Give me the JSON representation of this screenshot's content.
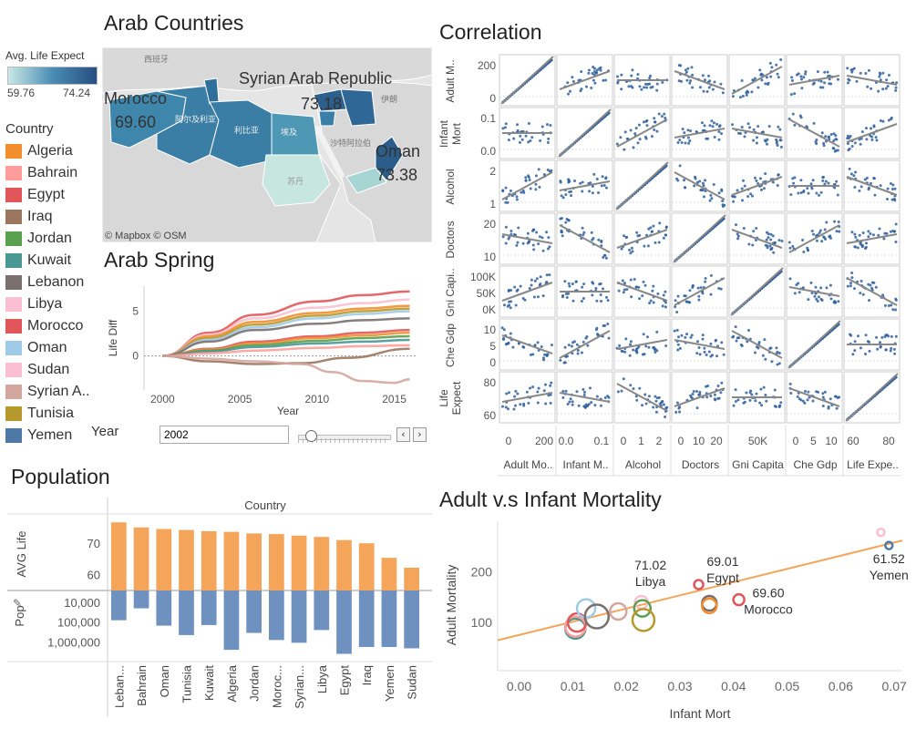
{
  "map_panel": {
    "title": "Arab Countries",
    "legend_title": "Avg. Life Expect",
    "legend_min": "59.76",
    "legend_max": "74.24",
    "attribution": "© Mapbox © OSM",
    "basemap_labels": [
      "西班牙",
      "伊朗",
      "沙特阿拉伯",
      "阿尔及利亚",
      "利比亚",
      "埃及",
      "苏丹"
    ],
    "callouts": [
      {
        "name": "Morocco",
        "value": "69.60"
      },
      {
        "name": "Syrian Arab Republic",
        "value": "73.18"
      },
      {
        "name": "Oman",
        "value": "73.38"
      }
    ]
  },
  "country_legend": {
    "title": "Country",
    "items": [
      {
        "label": "Algeria",
        "color": "#f28e2b"
      },
      {
        "label": "Bahrain",
        "color": "#ff9d9a"
      },
      {
        "label": "Egypt",
        "color": "#e15759"
      },
      {
        "label": "Iraq",
        "color": "#9c755f"
      },
      {
        "label": "Jordan",
        "color": "#59a14f"
      },
      {
        "label": "Kuwait",
        "color": "#499894"
      },
      {
        "label": "Lebanon",
        "color": "#79706e"
      },
      {
        "label": "Libya",
        "color": "#fabfd2"
      },
      {
        "label": "Morocco",
        "color": "#e15759"
      },
      {
        "label": "Oman",
        "color": "#a0cbe8"
      },
      {
        "label": "Sudan",
        "color": "#fabfd2"
      },
      {
        "label": "Syrian A..",
        "color": "#d4a6a0"
      },
      {
        "label": "Tunisia",
        "color": "#b6992d"
      },
      {
        "label": "Yemen",
        "color": "#4e79a7"
      }
    ]
  },
  "year_filter": {
    "label": "Year",
    "value": "2002",
    "prev_icon": "‹",
    "next_icon": "›",
    "slider_fraction": 0.14
  },
  "arab_spring": {
    "title": "Arab Spring",
    "chart_data": {
      "type": "line",
      "xlabel": "Year",
      "ylabel": "Life Diff",
      "x_ticks": [
        "2000",
        "2005",
        "2010",
        "2015"
      ],
      "y_ticks": [
        "0",
        "5"
      ],
      "xlim": [
        1998.8,
        2016.5
      ],
      "ylim": [
        -3.8,
        7.8
      ],
      "series": [
        {
          "color": "#e15759",
          "values": [
            [
              2000,
              0
            ],
            [
              2003,
              2.6
            ],
            [
              2006,
              4.6
            ],
            [
              2010,
              6.1
            ],
            [
              2013,
              6.8
            ],
            [
              2016,
              7.2
            ]
          ]
        },
        {
          "color": "#fabfd2",
          "values": [
            [
              2000,
              0
            ],
            [
              2003,
              2.4
            ],
            [
              2006,
              4.2
            ],
            [
              2010,
              5.4
            ],
            [
              2013,
              5.9
            ],
            [
              2016,
              6.3
            ]
          ]
        },
        {
          "color": "#f28e2b",
          "values": [
            [
              2000,
              0
            ],
            [
              2003,
              2.2
            ],
            [
              2006,
              3.8
            ],
            [
              2010,
              4.8
            ],
            [
              2013,
              5.3
            ],
            [
              2016,
              5.6
            ]
          ]
        },
        {
          "color": "#b6992d",
          "values": [
            [
              2000,
              0
            ],
            [
              2003,
              2.0
            ],
            [
              2006,
              3.5
            ],
            [
              2010,
              4.5
            ],
            [
              2013,
              5.0
            ],
            [
              2016,
              5.3
            ]
          ]
        },
        {
          "color": "#a0cbe8",
          "values": [
            [
              2000,
              0
            ],
            [
              2003,
              1.8
            ],
            [
              2006,
              3.2
            ],
            [
              2010,
              4.2
            ],
            [
              2013,
              4.7
            ],
            [
              2016,
              5.0
            ]
          ]
        },
        {
          "color": "#79706e",
          "values": [
            [
              2000,
              0
            ],
            [
              2003,
              1.6
            ],
            [
              2006,
              2.9
            ],
            [
              2010,
              3.6
            ],
            [
              2013,
              4.0
            ],
            [
              2016,
              4.2
            ]
          ]
        },
        {
          "color": "#e15759",
          "values": [
            [
              2000,
              0
            ],
            [
              2003,
              0.8
            ],
            [
              2006,
              1.6
            ],
            [
              2010,
              2.2
            ],
            [
              2013,
              2.6
            ],
            [
              2016,
              2.9
            ]
          ]
        },
        {
          "color": "#f28e2b",
          "values": [
            [
              2000,
              0
            ],
            [
              2003,
              0.7
            ],
            [
              2006,
              1.4
            ],
            [
              2010,
              2.0
            ],
            [
              2013,
              2.3
            ],
            [
              2016,
              2.6
            ]
          ]
        },
        {
          "color": "#59a14f",
          "values": [
            [
              2000,
              0
            ],
            [
              2003,
              0.6
            ],
            [
              2006,
              1.2
            ],
            [
              2010,
              1.7
            ],
            [
              2013,
              2.0
            ],
            [
              2016,
              2.2
            ]
          ]
        },
        {
          "color": "#499894",
          "values": [
            [
              2000,
              0
            ],
            [
              2003,
              0.5
            ],
            [
              2006,
              1.0
            ],
            [
              2010,
              1.4
            ],
            [
              2013,
              1.6
            ],
            [
              2016,
              1.8
            ]
          ]
        },
        {
          "color": "#ff9d9a",
          "values": [
            [
              2000,
              0
            ],
            [
              2003,
              0.3
            ],
            [
              2006,
              0.6
            ],
            [
              2010,
              0.9
            ],
            [
              2013,
              1.1
            ],
            [
              2016,
              1.2
            ]
          ]
        },
        {
          "color": "#9c755f",
          "values": [
            [
              2000,
              0
            ],
            [
              2003,
              -0.6
            ],
            [
              2006,
              -0.9
            ],
            [
              2009,
              -0.8
            ],
            [
              2012,
              -0.2
            ],
            [
              2016,
              0.8
            ]
          ]
        },
        {
          "color": "#d4a6a0",
          "values": [
            [
              2000,
              0
            ],
            [
              2003,
              -0.3
            ],
            [
              2006,
              -0.6
            ],
            [
              2009,
              -0.9
            ],
            [
              2011,
              -1.8
            ],
            [
              2013,
              -2.8
            ],
            [
              2015,
              -3.0
            ],
            [
              2016,
              -2.6
            ]
          ]
        }
      ]
    }
  },
  "population": {
    "title": "Population",
    "column_header": "Country",
    "top_axis_label": "AVG Life",
    "bottom_axis_label": "Pop",
    "pin_icon": "push-pin-icon",
    "chart_data": {
      "type": "bar",
      "categories": [
        "Leban...",
        "Bahrain",
        "Oman",
        "Tunisia",
        "Kuwait",
        "Algeria",
        "Jordan",
        "Moroc...",
        "Syrian...",
        "Libya",
        "Egypt",
        "Iraq",
        "Yemen",
        "Sudan"
      ],
      "avg_life": [
        76.5,
        74.9,
        74.4,
        74.1,
        73.7,
        73.5,
        73.0,
        72.8,
        72.3,
        71.9,
        70.9,
        69.9,
        65.3,
        62.2
      ],
      "population": [
        80000,
        20000,
        150000,
        450000,
        140000,
        2500000,
        350000,
        800000,
        1100000,
        250000,
        4000000,
        1800000,
        1800000,
        2100000
      ],
      "avg_life_ticks": [
        "60",
        "70"
      ],
      "pop_ticks": [
        "10,000",
        "100,000",
        "1,000,000"
      ],
      "avg_life_color": "#f4a55a",
      "pop_color": "#6f91bf"
    }
  },
  "correlation": {
    "title": "Correlation",
    "variables": [
      "Adult Mo..",
      "Infant M..",
      "Alcohol",
      "Doctors",
      "Gni Capita",
      "Che Gdp",
      "Life Expe.."
    ],
    "row_labels": [
      [
        "Adult M.."
      ],
      [
        "Infant",
        "Mort"
      ],
      [
        "Alcohol"
      ],
      [
        "Doctors"
      ],
      [
        "Gni Capi.."
      ],
      [
        "Che Gdp"
      ],
      [
        "Life",
        "Expect"
      ]
    ],
    "row_ticks": [
      [
        "200",
        "0"
      ],
      [
        "0.1",
        "0.0"
      ],
      [
        "2",
        "1"
      ],
      [
        "20",
        "10"
      ],
      [
        "100K",
        "50K",
        "0K"
      ],
      [
        "10",
        "5",
        "0"
      ],
      [
        "80",
        "60"
      ]
    ],
    "col_ticks": [
      [
        "0",
        "200"
      ],
      [
        "0.0",
        "0.1"
      ],
      [
        "0",
        "1",
        "2"
      ],
      [
        "0",
        "10",
        "20"
      ],
      [
        "50K"
      ],
      [
        "0",
        "5",
        "10"
      ],
      [
        "60",
        "80"
      ]
    ],
    "point_color": "#2f5f9e",
    "trend_color": "#888888"
  },
  "adult_infant": {
    "title": "Adult v.s Infant Mortality",
    "chart_data": {
      "type": "scatter",
      "xlabel": "Infant Mort",
      "ylabel": "Adult Mortality",
      "x_ticks": [
        "0.00",
        "0.01",
        "0.02",
        "0.03",
        "0.04",
        "0.05",
        "0.06",
        "0.07"
      ],
      "y_ticks": [
        "100",
        "200"
      ],
      "xlim": [
        -0.004,
        0.0715
      ],
      "ylim": [
        5,
        300
      ],
      "trend": [
        [
          -0.004,
          65
        ],
        [
          0.0715,
          262
        ]
      ],
      "trend_color": "#f4a55a",
      "points": [
        {
          "x": 0.0105,
          "y": 88,
          "r": 11,
          "color": "#499894"
        },
        {
          "x": 0.0105,
          "y": 92,
          "r": 11,
          "color": "#ff9d9a"
        },
        {
          "x": 0.0108,
          "y": 100,
          "r": 10,
          "color": "#e15759"
        },
        {
          "x": 0.0125,
          "y": 128,
          "r": 10,
          "color": "#a0cbe8"
        },
        {
          "x": 0.0145,
          "y": 112,
          "r": 13,
          "color": "#79706e"
        },
        {
          "x": 0.0185,
          "y": 122,
          "r": 9,
          "color": "#d4a6a0"
        },
        {
          "x": 0.0228,
          "y": 140,
          "r": 7,
          "color": "#fabfd2"
        },
        {
          "x": 0.023,
          "y": 128,
          "r": 9,
          "color": "#59a14f"
        },
        {
          "x": 0.0232,
          "y": 105,
          "r": 12,
          "color": "#b6992d"
        },
        {
          "x": 0.0335,
          "y": 175,
          "r": 5,
          "color": "#e15759"
        },
        {
          "x": 0.0355,
          "y": 138,
          "r": 8,
          "color": "#79706e"
        },
        {
          "x": 0.0355,
          "y": 133,
          "r": 8,
          "color": "#f28e2b"
        },
        {
          "x": 0.041,
          "y": 145,
          "r": 6,
          "color": "#e15759"
        },
        {
          "x": 0.0675,
          "y": 278,
          "r": 4,
          "color": "#fabfd2"
        },
        {
          "x": 0.069,
          "y": 252,
          "r": 4,
          "color": "#4e79a7"
        }
      ],
      "labels": [
        {
          "value": "71.02",
          "name": "Libya",
          "x": 0.0245,
          "y": 205
        },
        {
          "value": "69.01",
          "name": "Egypt",
          "x": 0.038,
          "y": 212
        },
        {
          "value": "69.60",
          "name": "Morocco",
          "x": 0.0465,
          "y": 150
        },
        {
          "value": "61.52",
          "name": "Yemen",
          "x": 0.069,
          "y": 217
        }
      ]
    }
  }
}
